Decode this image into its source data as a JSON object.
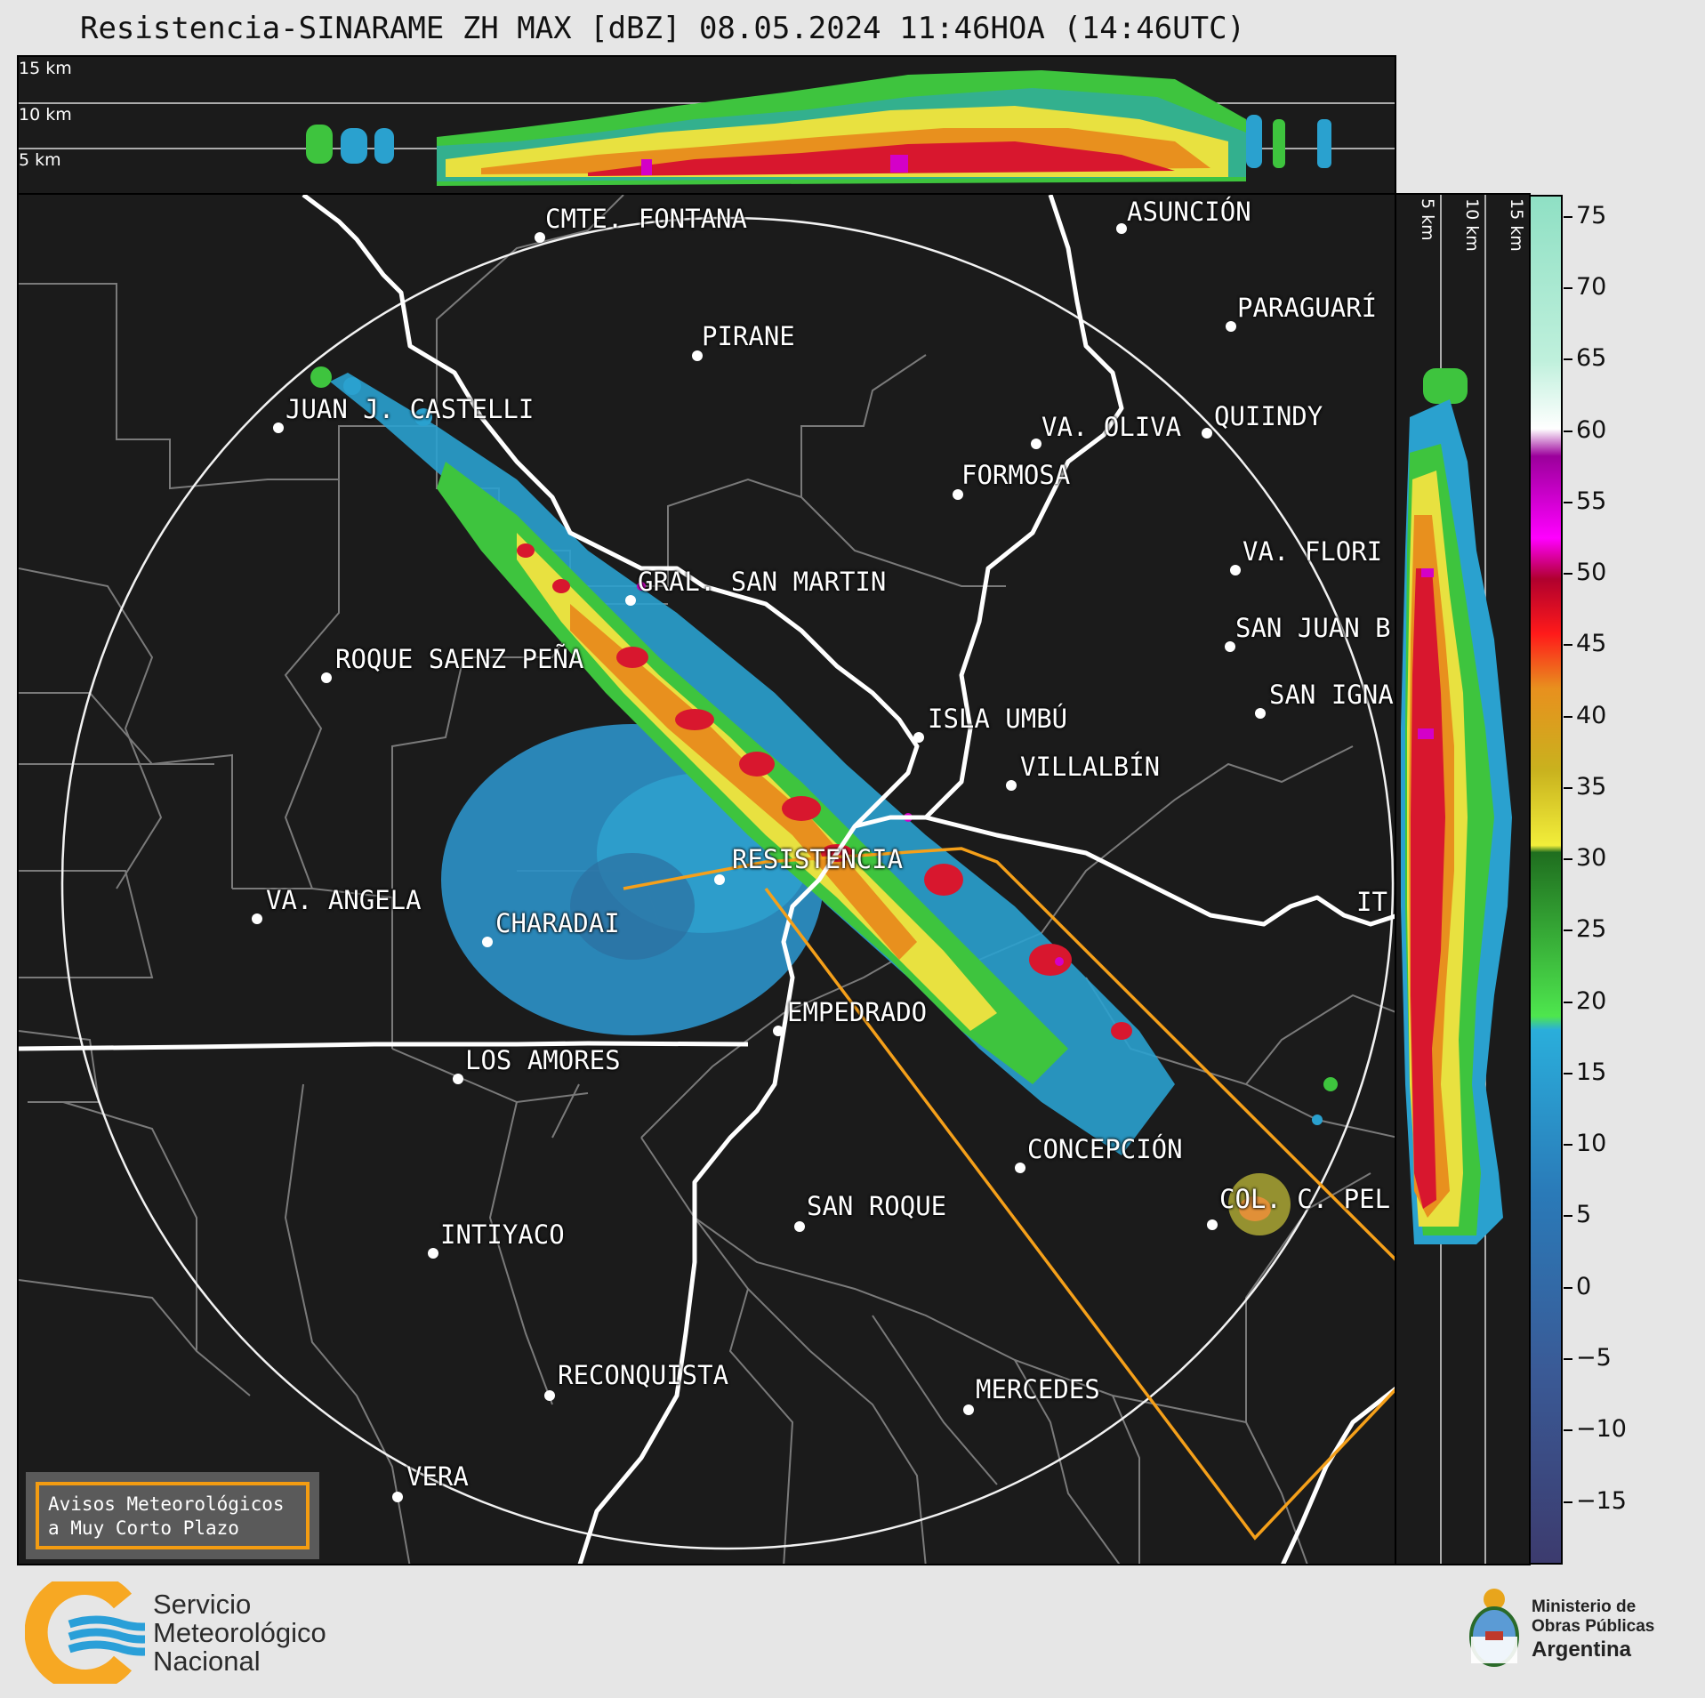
{
  "title": "Resistencia-SINARAME ZH MAX [dBZ] 08.05.2024 11:46HOA (14:46UTC)",
  "height_labels": [
    "15 km",
    "10 km",
    "5 km"
  ],
  "cities": [
    {
      "name": "ASUNCIÓN"
    },
    {
      "name": "CMTE. FONTANA"
    },
    {
      "name": "PARAGUARÍ"
    },
    {
      "name": "PIRANE"
    },
    {
      "name": "JUAN J. CASTELLI"
    },
    {
      "name": "VA. OLIVA"
    },
    {
      "name": "QUIINDY"
    },
    {
      "name": "FORMOSA"
    },
    {
      "name": "VA. FLORI"
    },
    {
      "name": "GRAL. SAN MARTIN"
    },
    {
      "name": "SAN JUAN B"
    },
    {
      "name": "ROQUE SAENZ PEÑA"
    },
    {
      "name": "SAN IGNA"
    },
    {
      "name": "ISLA UMBÚ"
    },
    {
      "name": "VILLALBÍN"
    },
    {
      "name": "RESISTENCIA"
    },
    {
      "name": "VA. ANGELA"
    },
    {
      "name": "CHARADAI"
    },
    {
      "name": "IT"
    },
    {
      "name": "EMPEDRADO"
    },
    {
      "name": "LOS AMORES"
    },
    {
      "name": "CONCEPCIÓN"
    },
    {
      "name": "COL. C. PEL"
    },
    {
      "name": "SAN ROQUE"
    },
    {
      "name": "INTIYACO"
    },
    {
      "name": "RECONQUISTA"
    },
    {
      "name": "MERCEDES"
    },
    {
      "name": "VERA"
    }
  ],
  "warning_box": {
    "line1": "Avisos Meteorológicos",
    "line2": "a Muy Corto Plazo"
  },
  "colorbar": {
    "ticks": [
      "75",
      "70",
      "65",
      "60",
      "55",
      "50",
      "45",
      "40",
      "35",
      "30",
      "25",
      "20",
      "15",
      "10",
      "5",
      "0",
      "−5",
      "−10",
      "−15"
    ]
  },
  "logo_smn": {
    "line1": "Servicio",
    "line2": "Meteorológico",
    "line3": "Nacional"
  },
  "logo_ministry": {
    "line1": "Ministerio de",
    "line2": "Obras Públicas",
    "line3": "Argentina"
  }
}
